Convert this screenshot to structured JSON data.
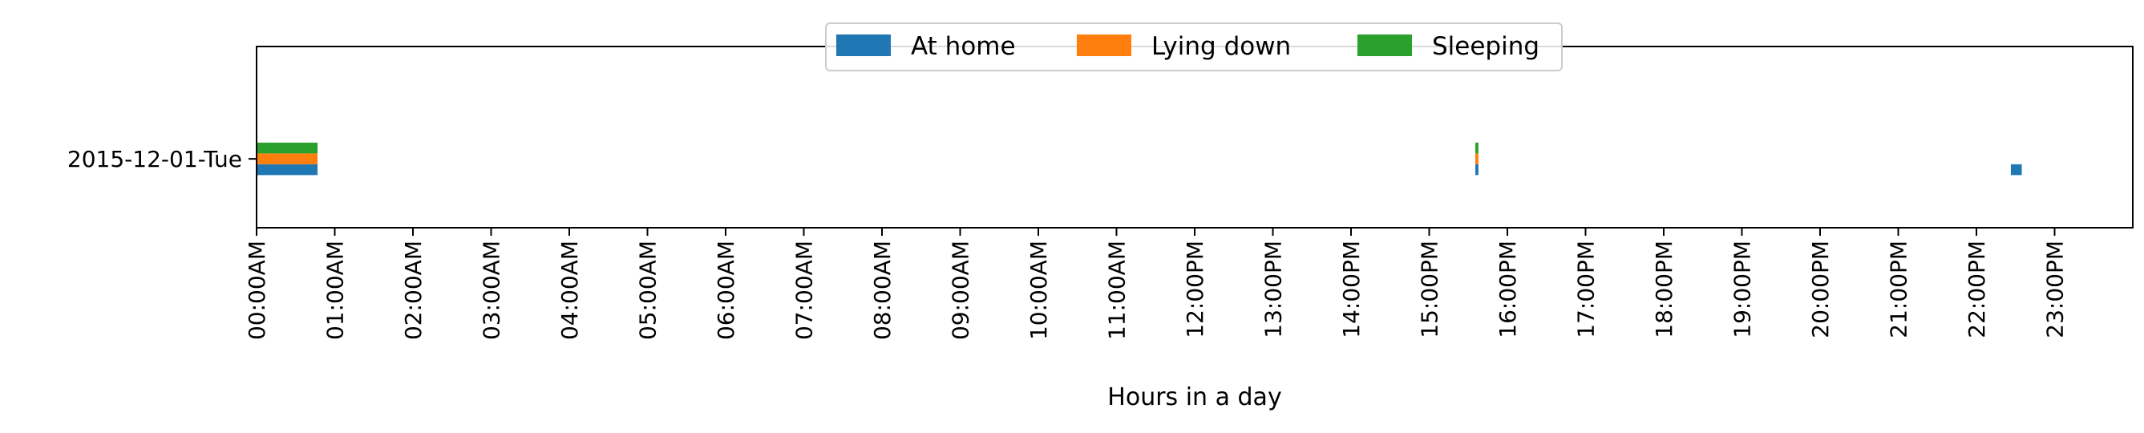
{
  "chart_data": {
    "type": "bar",
    "orientation": "horizontal",
    "categories": [
      "2015-12-01-Tue"
    ],
    "xlabel": "Hours in a day",
    "ylabel": "",
    "xlim": [
      0,
      24
    ],
    "x_ticks": [
      {
        "value": 0,
        "label": "00:00AM"
      },
      {
        "value": 1,
        "label": "01:00AM"
      },
      {
        "value": 2,
        "label": "02:00AM"
      },
      {
        "value": 3,
        "label": "03:00AM"
      },
      {
        "value": 4,
        "label": "04:00AM"
      },
      {
        "value": 5,
        "label": "05:00AM"
      },
      {
        "value": 6,
        "label": "06:00AM"
      },
      {
        "value": 7,
        "label": "07:00AM"
      },
      {
        "value": 8,
        "label": "08:00AM"
      },
      {
        "value": 9,
        "label": "09:00AM"
      },
      {
        "value": 10,
        "label": "10:00AM"
      },
      {
        "value": 11,
        "label": "11:00AM"
      },
      {
        "value": 12,
        "label": "12:00PM"
      },
      {
        "value": 13,
        "label": "13:00PM"
      },
      {
        "value": 14,
        "label": "14:00PM"
      },
      {
        "value": 15,
        "label": "15:00PM"
      },
      {
        "value": 16,
        "label": "16:00PM"
      },
      {
        "value": 17,
        "label": "17:00PM"
      },
      {
        "value": 18,
        "label": "18:00PM"
      },
      {
        "value": 19,
        "label": "19:00PM"
      },
      {
        "value": 20,
        "label": "20:00PM"
      },
      {
        "value": 21,
        "label": "21:00PM"
      },
      {
        "value": 22,
        "label": "22:00PM"
      },
      {
        "value": 23,
        "label": "23:00PM"
      }
    ],
    "legend_position": "top-center",
    "grid": false,
    "series": [
      {
        "name": "At home",
        "color": "#1f77b4",
        "intervals": [
          {
            "category": "2015-12-01-Tue",
            "start": 0.0,
            "end": 0.78
          },
          {
            "category": "2015-12-01-Tue",
            "start": 15.59,
            "end": 15.63
          },
          {
            "category": "2015-12-01-Tue",
            "start": 22.44,
            "end": 22.58
          }
        ]
      },
      {
        "name": "Lying down",
        "color": "#ff7f0e",
        "intervals": [
          {
            "category": "2015-12-01-Tue",
            "start": 0.0,
            "end": 0.78
          },
          {
            "category": "2015-12-01-Tue",
            "start": 15.59,
            "end": 15.63
          }
        ]
      },
      {
        "name": "Sleeping",
        "color": "#2ca02c",
        "intervals": [
          {
            "category": "2015-12-01-Tue",
            "start": 0.0,
            "end": 0.78
          },
          {
            "category": "2015-12-01-Tue",
            "start": 15.59,
            "end": 15.63
          }
        ]
      }
    ]
  }
}
